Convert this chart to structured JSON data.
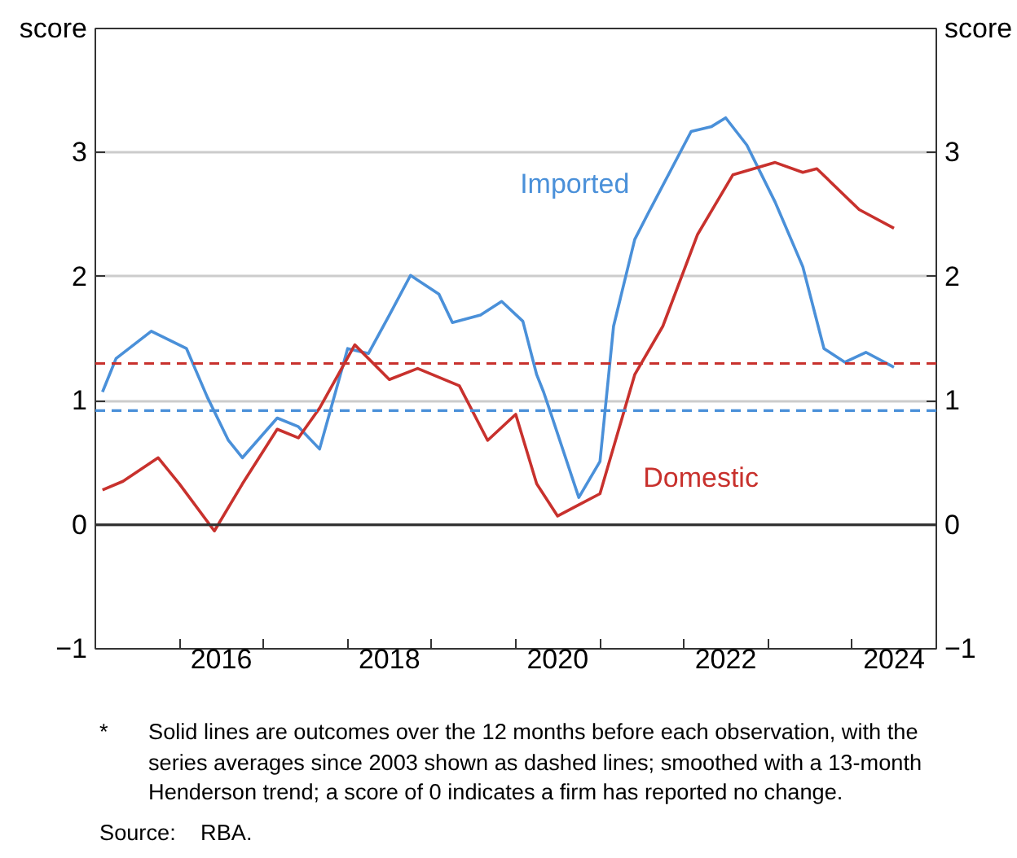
{
  "chart_data": {
    "type": "line",
    "ylabel": "score",
    "y2label": "score",
    "xlim": [
      "2015-01",
      "2025-01"
    ],
    "xticks": [
      {
        "value": "2015-01",
        "label": null
      },
      {
        "value": "2016-01",
        "label": null
      },
      {
        "value": "2017-01",
        "label": null
      },
      {
        "value": "2018-01",
        "label": null
      },
      {
        "value": "2019-01",
        "label": null
      },
      {
        "value": "2020-01",
        "label": null
      },
      {
        "value": "2021-01",
        "label": null
      },
      {
        "value": "2022-01",
        "label": null
      },
      {
        "value": "2023-01",
        "label": null
      },
      {
        "value": "2024-01",
        "label": null
      },
      {
        "value": "2025-01",
        "label": null
      },
      {
        "value": "2016-07",
        "label": "2016"
      },
      {
        "value": "2018-07",
        "label": "2018"
      },
      {
        "value": "2020-07",
        "label": "2020"
      },
      {
        "value": "2022-07",
        "label": "2022"
      },
      {
        "value": "2024-07",
        "label": "2024"
      }
    ],
    "ylim": [
      -1,
      4
    ],
    "yticks": [
      -1,
      0,
      1,
      2,
      3
    ],
    "y2lim": [
      -1,
      4
    ],
    "y2ticks": [
      -1,
      0,
      1,
      2,
      3
    ],
    "grid": "y",
    "legend": false,
    "marker": "none",
    "line_style": "solid",
    "series": [
      {
        "name": "Imported",
        "color": "#4a90d9",
        "x": [
          "2015-02",
          "2015-04",
          "2015-09",
          "2016-02",
          "2016-05",
          "2016-08",
          "2016-10",
          "2017-03",
          "2017-06",
          "2017-09",
          "2018-01",
          "2018-04",
          "2018-07",
          "2018-10",
          "2019-02",
          "2019-04",
          "2019-08",
          "2019-11",
          "2020-02",
          "2020-04",
          "2020-05",
          "2020-06",
          "2020-10",
          "2021-01",
          "2021-03",
          "2021-06",
          "2021-08",
          "2022-02",
          "2022-05",
          "2022-07",
          "2022-10",
          "2023-02",
          "2023-06",
          "2023-09",
          "2023-12",
          "2024-03",
          "2024-07"
        ],
        "values": [
          1.07,
          1.34,
          1.56,
          1.42,
          1.03,
          0.68,
          0.54,
          0.86,
          0.79,
          0.61,
          1.42,
          1.38,
          1.69,
          2.01,
          1.86,
          1.63,
          1.69,
          1.8,
          1.64,
          1.21,
          1.07,
          0.9,
          0.22,
          0.51,
          1.6,
          2.3,
          2.52,
          3.17,
          3.21,
          3.28,
          3.06,
          2.6,
          2.08,
          1.42,
          1.31,
          1.39,
          1.27
        ]
      },
      {
        "name": "Domestic",
        "color": "#c8312d",
        "x": [
          "2015-02",
          "2015-05",
          "2015-10",
          "2016-01",
          "2016-06",
          "2016-10",
          "2017-03",
          "2017-06",
          "2017-09",
          "2018-02",
          "2018-07",
          "2018-11",
          "2019-05",
          "2019-09",
          "2020-01",
          "2020-04",
          "2020-07",
          "2020-10",
          "2021-01",
          "2021-06",
          "2021-10",
          "2022-03",
          "2022-08",
          "2023-02",
          "2023-06",
          "2023-08",
          "2024-02",
          "2024-07"
        ],
        "values": [
          0.28,
          0.35,
          0.54,
          0.33,
          -0.05,
          0.33,
          0.77,
          0.7,
          0.94,
          1.45,
          1.17,
          1.26,
          1.12,
          0.68,
          0.89,
          0.33,
          0.07,
          0.16,
          0.25,
          1.21,
          1.6,
          2.34,
          2.82,
          2.92,
          2.84,
          2.87,
          2.54,
          2.39
        ]
      }
    ],
    "ref_lines": [
      {
        "axis": "y",
        "value": 0,
        "label": null,
        "color": "#333333",
        "line_style": "solid"
      },
      {
        "axis": "y",
        "value": 1.3,
        "label": null,
        "color": "#c8312d",
        "line_style": "dashed"
      },
      {
        "axis": "y",
        "value": 0.92,
        "label": null,
        "color": "#4a90d9",
        "line_style": "dashed"
      }
    ],
    "annotations": [
      "*\tSolid lines are outcomes over the 12 months before each observation, with the series averages since 2003 shown as dashed lines; smoothed with a 13-month Henderson trend; a score of 0 indicates a firm has reported no change.",
      "Source:\tRBA."
    ]
  }
}
